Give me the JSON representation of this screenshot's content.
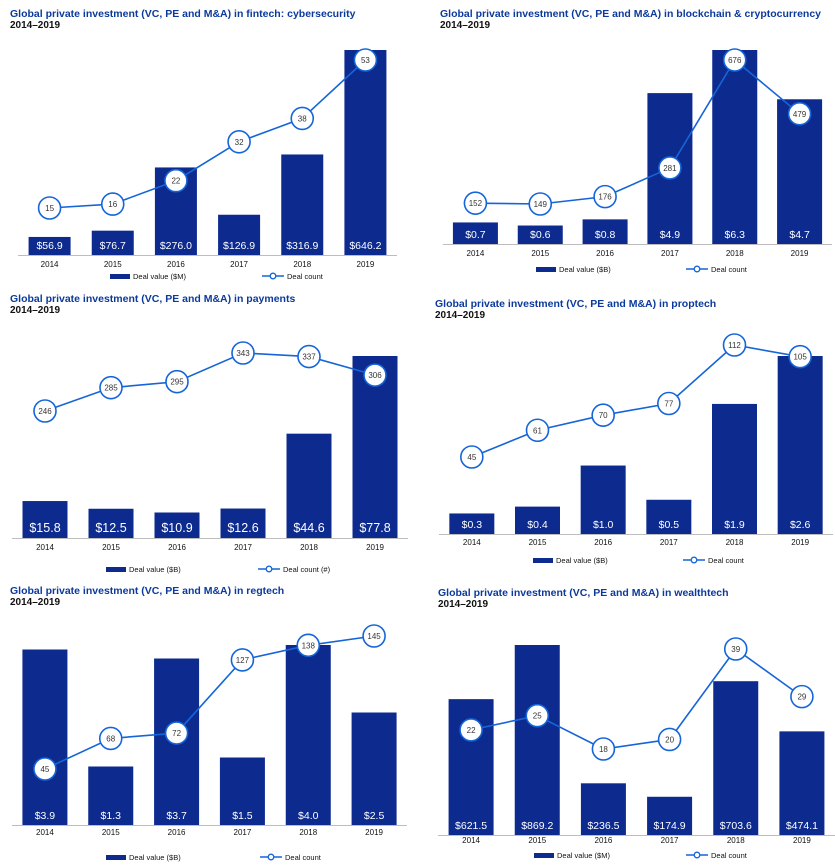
{
  "colors": {
    "bar": "#0d2a8f",
    "line": "#1565d8",
    "title": "#0b3a9c",
    "text": "#111111"
  },
  "chart_data": [
    {
      "type": "bar",
      "title": "Global private investment (VC, PE and M&A) in fintech: cybersecurity",
      "subtitle": "2014–2019",
      "categories": [
        "2014",
        "2015",
        "2016",
        "2017",
        "2018",
        "2019"
      ],
      "series": [
        {
          "name": "Deal value ($M)",
          "type": "bar",
          "values": [
            56.9,
            76.7,
            276.0,
            126.9,
            316.9,
            646.2
          ],
          "labels": [
            "$56.9",
            "$76.7",
            "$276.0",
            "$126.9",
            "$316.9",
            "$646.2"
          ]
        },
        {
          "name": "Deal count",
          "type": "line",
          "values": [
            15,
            16,
            22,
            32,
            38,
            53
          ]
        }
      ],
      "legend": [
        "Deal value ($M)",
        "Deal count"
      ]
    },
    {
      "type": "bar",
      "title": "Global private investment (VC, PE and M&A) in blockchain & cryptocurrency",
      "subtitle": "2014–2019",
      "categories": [
        "2014",
        "2015",
        "2016",
        "2017",
        "2018",
        "2019"
      ],
      "series": [
        {
          "name": "Deal value ($B)",
          "type": "bar",
          "values": [
            0.7,
            0.6,
            0.8,
            4.9,
            6.3,
            4.7
          ],
          "labels": [
            "$0.7",
            "$0.6",
            "$0.8",
            "$4.9",
            "$6.3",
            "$4.7"
          ]
        },
        {
          "name": "Deal count",
          "type": "line",
          "values": [
            152,
            149,
            176,
            281,
            676,
            479
          ]
        }
      ],
      "legend": [
        "Deal value ($B)",
        "Deal count"
      ]
    },
    {
      "type": "bar",
      "title": "Global private investment (VC, PE and M&A) in payments",
      "subtitle": "2014–2019",
      "categories": [
        "2014",
        "2015",
        "2016",
        "2017",
        "2018",
        "2019"
      ],
      "series": [
        {
          "name": "Deal value ($B)",
          "type": "bar",
          "values": [
            15.8,
            12.5,
            10.9,
            12.6,
            44.6,
            77.8
          ],
          "labels": [
            "$15.8",
            "$12.5",
            "$10.9",
            "$12.6",
            "$44.6",
            "$77.8"
          ]
        },
        {
          "name": "Deal count (#)",
          "type": "line",
          "values": [
            246,
            285,
            295,
            343,
            337,
            306
          ]
        }
      ],
      "legend": [
        "Deal value ($B)",
        "Deal count (#)"
      ]
    },
    {
      "type": "bar",
      "title": "Global private investment (VC, PE and M&A) in proptech",
      "subtitle": "2014–2019",
      "categories": [
        "2014",
        "2015",
        "2016",
        "2017",
        "2018",
        "2019"
      ],
      "series": [
        {
          "name": "Deal value ($B)",
          "type": "bar",
          "values": [
            0.3,
            0.4,
            1.0,
            0.5,
            1.9,
            2.6
          ],
          "labels": [
            "$0.3",
            "$0.4",
            "$1.0",
            "$0.5",
            "$1.9",
            "$2.6"
          ]
        },
        {
          "name": "Deal count",
          "type": "line",
          "values": [
            45,
            61,
            70,
            77,
            112,
            105
          ]
        }
      ],
      "legend": [
        "Deal value ($B)",
        "Deal count"
      ]
    },
    {
      "type": "bar",
      "title": "Global private investment (VC, PE and M&A) in regtech",
      "subtitle": "2014–2019",
      "categories": [
        "2014",
        "2015",
        "2016",
        "2017",
        "2018",
        "2019"
      ],
      "series": [
        {
          "name": "Deal value ($B)",
          "type": "bar",
          "values": [
            3.9,
            1.3,
            3.7,
            1.5,
            4.0,
            2.5
          ],
          "labels": [
            "$3.9",
            "$1.3",
            "$3.7",
            "$1.5",
            "$4.0",
            "$2.5"
          ]
        },
        {
          "name": "Deal count",
          "type": "line",
          "values": [
            45,
            68,
            72,
            127,
            138,
            145
          ]
        }
      ],
      "legend": [
        "Deal value ($B)",
        "Deal count"
      ]
    },
    {
      "type": "bar",
      "title": "Global private investment (VC, PE and M&A) in wealthtech",
      "subtitle": "2014–2019",
      "categories": [
        "2014",
        "2015",
        "2016",
        "2017",
        "2018",
        "2019"
      ],
      "series": [
        {
          "name": "Deal value ($M)",
          "type": "bar",
          "values": [
            621.5,
            869.2,
            236.5,
            174.9,
            703.6,
            474.1
          ],
          "labels": [
            "$621.5",
            "$869.2",
            "$236.5",
            "$174.9",
            "$703.6",
            "$474.1"
          ]
        },
        {
          "name": "Deal count",
          "type": "line",
          "values": [
            22,
            25,
            18,
            20,
            39,
            29
          ]
        }
      ],
      "legend": [
        "Deal value ($M)",
        "Deal count"
      ]
    }
  ]
}
